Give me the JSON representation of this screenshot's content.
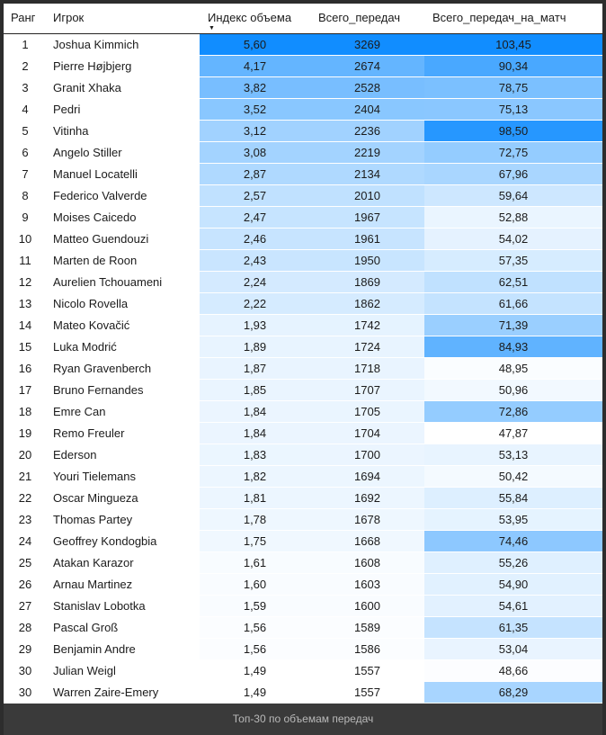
{
  "chart_data": {
    "type": "table",
    "title": "Топ-30 по объемам передач",
    "columns": [
      "Ранг",
      "Игрок",
      "Индекс объема",
      "Всего_передач",
      "Всего_передач_на_матч"
    ],
    "sort": {
      "column": "Индекс объема",
      "direction": "desc",
      "icon": "▼"
    },
    "heatmap": {
      "min_color": "#FFFFFF",
      "max_color": "#118DFF",
      "columns": [
        "volume_index",
        "total_passes",
        "passes_per_match"
      ]
    },
    "rows": [
      {
        "rank": 1,
        "player": "Joshua Kimmich",
        "volume_index": "5,60",
        "total_passes": 3269,
        "passes_per_match": "103,45"
      },
      {
        "rank": 2,
        "player": "Pierre Højbjerg",
        "volume_index": "4,17",
        "total_passes": 2674,
        "passes_per_match": "90,34"
      },
      {
        "rank": 3,
        "player": "Granit Xhaka",
        "volume_index": "3,82",
        "total_passes": 2528,
        "passes_per_match": "78,75"
      },
      {
        "rank": 4,
        "player": "Pedri",
        "volume_index": "3,52",
        "total_passes": 2404,
        "passes_per_match": "75,13"
      },
      {
        "rank": 5,
        "player": "Vitinha",
        "volume_index": "3,12",
        "total_passes": 2236,
        "passes_per_match": "98,50"
      },
      {
        "rank": 6,
        "player": "Angelo Stiller",
        "volume_index": "3,08",
        "total_passes": 2219,
        "passes_per_match": "72,75"
      },
      {
        "rank": 7,
        "player": "Manuel Locatelli",
        "volume_index": "2,87",
        "total_passes": 2134,
        "passes_per_match": "67,96"
      },
      {
        "rank": 8,
        "player": "Federico Valverde",
        "volume_index": "2,57",
        "total_passes": 2010,
        "passes_per_match": "59,64"
      },
      {
        "rank": 9,
        "player": "Moises Caicedo",
        "volume_index": "2,47",
        "total_passes": 1967,
        "passes_per_match": "52,88"
      },
      {
        "rank": 10,
        "player": "Matteo Guendouzi",
        "volume_index": "2,46",
        "total_passes": 1961,
        "passes_per_match": "54,02"
      },
      {
        "rank": 11,
        "player": "Marten de Roon",
        "volume_index": "2,43",
        "total_passes": 1950,
        "passes_per_match": "57,35"
      },
      {
        "rank": 12,
        "player": "Aurelien Tchouameni",
        "volume_index": "2,24",
        "total_passes": 1869,
        "passes_per_match": "62,51"
      },
      {
        "rank": 13,
        "player": "Nicolo Rovella",
        "volume_index": "2,22",
        "total_passes": 1862,
        "passes_per_match": "61,66"
      },
      {
        "rank": 14,
        "player": "Mateo Kovačić",
        "volume_index": "1,93",
        "total_passes": 1742,
        "passes_per_match": "71,39"
      },
      {
        "rank": 15,
        "player": "Luka Modrić",
        "volume_index": "1,89",
        "total_passes": 1724,
        "passes_per_match": "84,93"
      },
      {
        "rank": 16,
        "player": "Ryan Gravenberch",
        "volume_index": "1,87",
        "total_passes": 1718,
        "passes_per_match": "48,95"
      },
      {
        "rank": 17,
        "player": "Bruno Fernandes",
        "volume_index": "1,85",
        "total_passes": 1707,
        "passes_per_match": "50,96"
      },
      {
        "rank": 18,
        "player": "Emre Can",
        "volume_index": "1,84",
        "total_passes": 1705,
        "passes_per_match": "72,86"
      },
      {
        "rank": 19,
        "player": "Remo Freuler",
        "volume_index": "1,84",
        "total_passes": 1704,
        "passes_per_match": "47,87"
      },
      {
        "rank": 20,
        "player": "Ederson",
        "volume_index": "1,83",
        "total_passes": 1700,
        "passes_per_match": "53,13"
      },
      {
        "rank": 21,
        "player": "Youri Tielemans",
        "volume_index": "1,82",
        "total_passes": 1694,
        "passes_per_match": "50,42"
      },
      {
        "rank": 22,
        "player": "Oscar Mingueza",
        "volume_index": "1,81",
        "total_passes": 1692,
        "passes_per_match": "55,84"
      },
      {
        "rank": 23,
        "player": "Thomas Partey",
        "volume_index": "1,78",
        "total_passes": 1678,
        "passes_per_match": "53,95"
      },
      {
        "rank": 24,
        "player": "Geoffrey Kondogbia",
        "volume_index": "1,75",
        "total_passes": 1668,
        "passes_per_match": "74,46"
      },
      {
        "rank": 25,
        "player": "Atakan Karazor",
        "volume_index": "1,61",
        "total_passes": 1608,
        "passes_per_match": "55,26"
      },
      {
        "rank": 26,
        "player": "Arnau Martinez",
        "volume_index": "1,60",
        "total_passes": 1603,
        "passes_per_match": "54,90"
      },
      {
        "rank": 27,
        "player": "Stanislav Lobotka",
        "volume_index": "1,59",
        "total_passes": 1600,
        "passes_per_match": "54,61"
      },
      {
        "rank": 28,
        "player": "Pascal Groß",
        "volume_index": "1,56",
        "total_passes": 1589,
        "passes_per_match": "61,35"
      },
      {
        "rank": 29,
        "player": "Benjamin Andre",
        "volume_index": "1,56",
        "total_passes": 1586,
        "passes_per_match": "53,04"
      },
      {
        "rank": 30,
        "player": "Julian Weigl",
        "volume_index": "1,49",
        "total_passes": 1557,
        "passes_per_match": "48,66"
      },
      {
        "rank": 30,
        "player": "Warren Zaire-Emery",
        "volume_index": "1,49",
        "total_passes": 1557,
        "passes_per_match": "68,29"
      }
    ]
  }
}
